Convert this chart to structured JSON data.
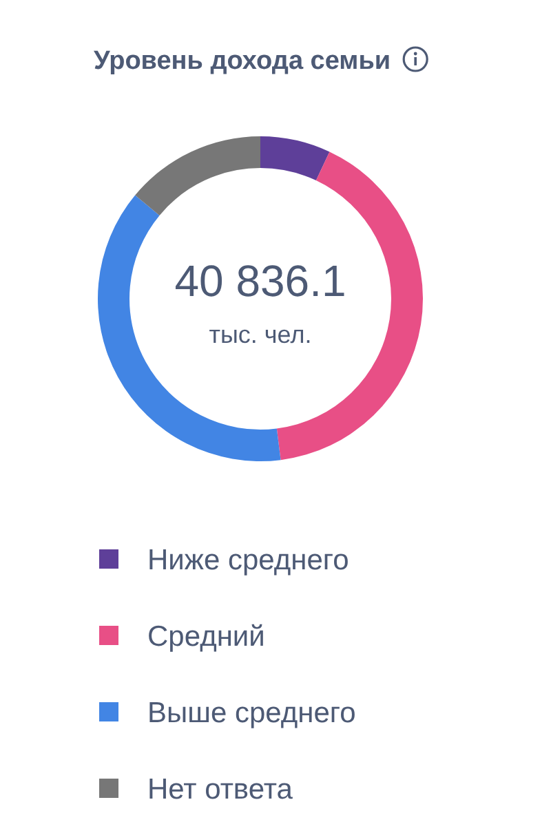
{
  "chart_data": {
    "type": "donut",
    "title": "Уровень дохода семьи",
    "categories": [
      "Ниже среднего",
      "Средний",
      "Выше среднего",
      "Нет ответа"
    ],
    "values": [
      7,
      41,
      38,
      14
    ],
    "colors": [
      "#5e3f99",
      "#e84f86",
      "#4285e4",
      "#777777"
    ],
    "annotations": [
      "40 836.1",
      "тыс. чел."
    ],
    "legend": "bottom"
  }
}
